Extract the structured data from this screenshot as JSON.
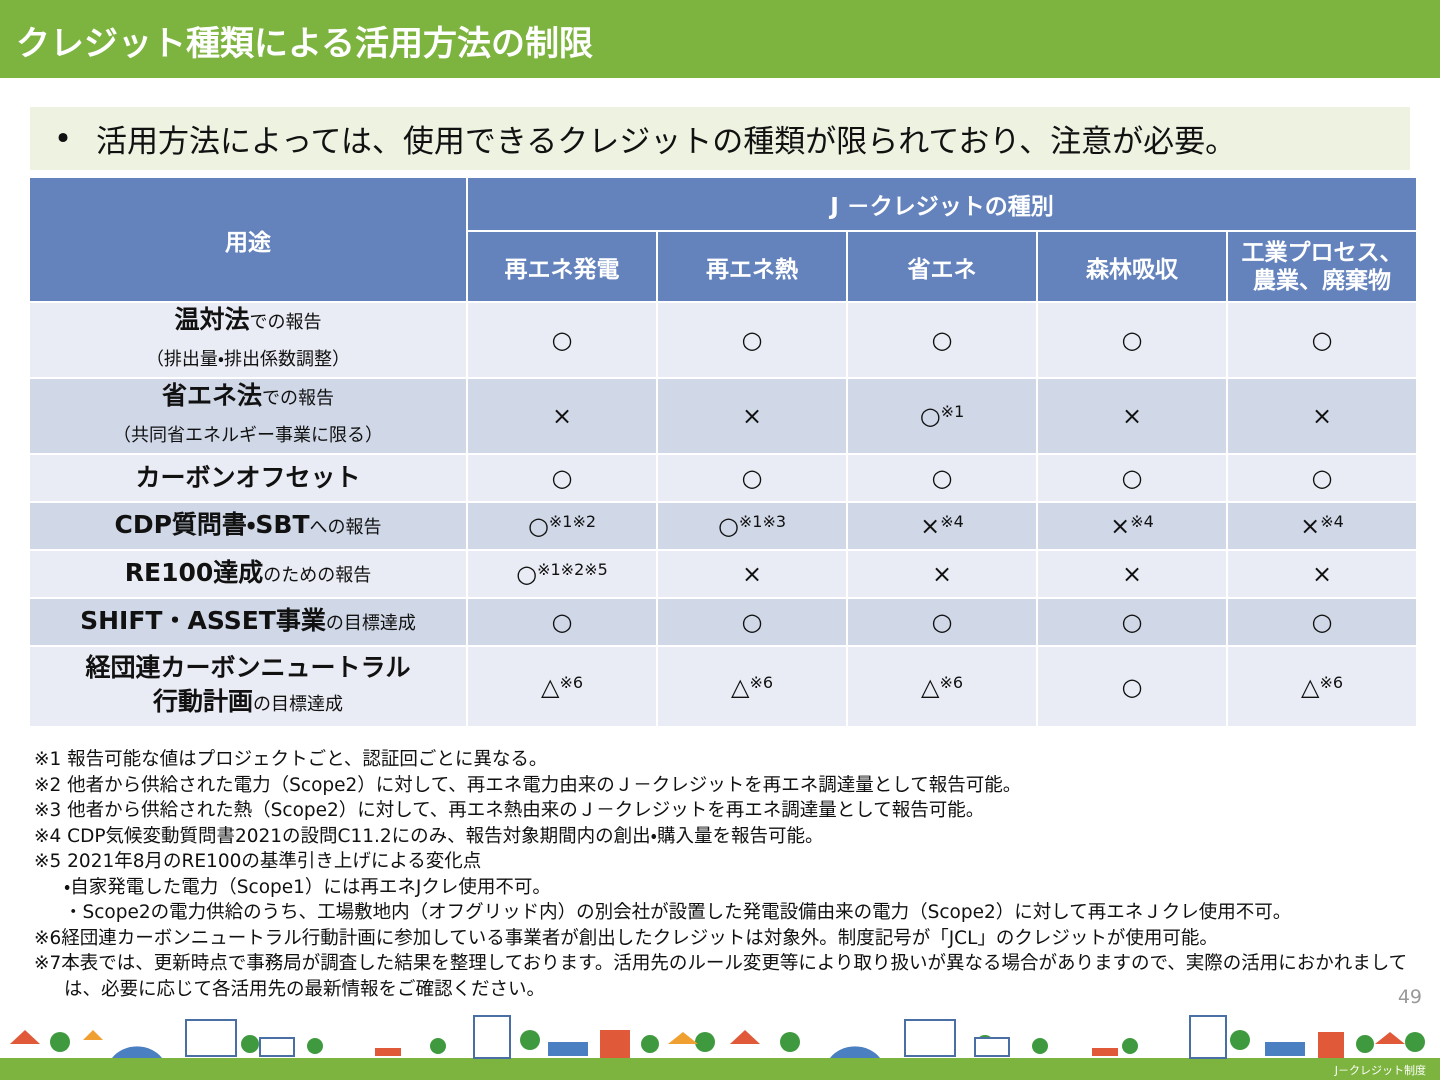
{
  "header": {
    "title": "クレジット種類による活用方法の制限"
  },
  "bullet": {
    "marker": "•",
    "text": "活用方法によっては、使用できるクレジットの種類が限られており、注意が必要。"
  },
  "table": {
    "usage_header": "用途",
    "group_header": "J －クレジットの種別",
    "columns": [
      [
        "再エネ発電"
      ],
      [
        "再エネ熱"
      ],
      [
        "省エネ"
      ],
      [
        "森林吸収"
      ],
      [
        "工業プロセス、",
        "農業、廃棄物"
      ]
    ],
    "rows": [
      {
        "label": [
          {
            "bold": "温対法",
            "normal": "での報告"
          },
          {
            "normal": "（排出量・排出係数調整）"
          }
        ],
        "cells": [
          {
            "mark": "○"
          },
          {
            "mark": "○"
          },
          {
            "mark": "○"
          },
          {
            "mark": "○"
          },
          {
            "mark": "○"
          }
        ]
      },
      {
        "label": [
          {
            "bold": "省エネ法",
            "normal": "での報告"
          },
          {
            "normal": "（共同省エネルギー事業に限る）"
          }
        ],
        "cells": [
          {
            "mark": "×"
          },
          {
            "mark": "×"
          },
          {
            "mark": "○",
            "note": "※1"
          },
          {
            "mark": "×"
          },
          {
            "mark": "×"
          }
        ]
      },
      {
        "label": [
          {
            "bold": "カーボンオフセット"
          }
        ],
        "cells": [
          {
            "mark": "○"
          },
          {
            "mark": "○"
          },
          {
            "mark": "○"
          },
          {
            "mark": "○"
          },
          {
            "mark": "○"
          }
        ]
      },
      {
        "label": [
          {
            "bold": "CDP質問書・SBT",
            "normal": "への報告"
          }
        ],
        "cells": [
          {
            "mark": "○",
            "note": "※1※2"
          },
          {
            "mark": "○",
            "note": "※1※3"
          },
          {
            "mark": "×",
            "note": "※4"
          },
          {
            "mark": "×",
            "note": "※4"
          },
          {
            "mark": "×",
            "note": "※4"
          }
        ]
      },
      {
        "label": [
          {
            "bold": "RE100達成",
            "normal": "のための報告"
          }
        ],
        "cells": [
          {
            "mark": "○",
            "note": "※1※2※5"
          },
          {
            "mark": "×"
          },
          {
            "mark": "×"
          },
          {
            "mark": "×"
          },
          {
            "mark": "×"
          }
        ]
      },
      {
        "label": [
          {
            "bold": "SHIFT・ASSET事業",
            "normal": "の目標達成"
          }
        ],
        "cells": [
          {
            "mark": "○"
          },
          {
            "mark": "○"
          },
          {
            "mark": "○"
          },
          {
            "mark": "○"
          },
          {
            "mark": "○"
          }
        ]
      },
      {
        "label": [
          {
            "bold": "経団連カーボンニュートラル"
          },
          {
            "bold": "行動計画",
            "normal": "の目標達成"
          }
        ],
        "cells": [
          {
            "mark": "△",
            "note": "※6"
          },
          {
            "mark": "△",
            "note": "※6"
          },
          {
            "mark": "△",
            "note": "※6"
          },
          {
            "mark": "○"
          },
          {
            "mark": "△",
            "note": "※6"
          }
        ]
      }
    ]
  },
  "notes": [
    {
      "text": "※1 報告可能な値はプロジェクトごと、認証回ごとに異なる。"
    },
    {
      "text": "※2 他者から供給された電力（Scope2）に対して、再エネ電力由来のＪ－クレジットを再エネ調達量として報告可能。"
    },
    {
      "text": "※3 他者から供給された熱（Scope2）に対して、再エネ熱由来のＪ－クレジットを再エネ調達量として報告可能。"
    },
    {
      "text": "※4 CDP気候変動質問書2021の設問C11.2にのみ、報告対象期間内の創出・購入量を報告可能。"
    },
    {
      "text": "※5 2021年8月のRE100の基準引き上げによる変化点"
    },
    {
      "text": "・自家発電した電力（Scope1）には再エネJクレ使用不可。",
      "sub": true
    },
    {
      "text": "・Scope2の電力供給のうち、工場敷地内（オフグリッド内）の別会社が設置した発電設備由来の電力（Scope2）に対して再エネＪクレ使用不可。",
      "sub": true
    },
    {
      "text": "※6経団連カーボンニュートラル行動計画に参加している事業者が創出したクレジットは対象外。制度記号が「JCL」のクレジットが使用可能。"
    },
    {
      "text": "※7本表では、更新時点で事務局が調査した結果を整理しております。活用先のルール変更等により取り扱いが異なる場合がありますので、実際の活用におかれましては、必要に応じて各活用先の最新情報をご確認ください。"
    }
  ],
  "footer": {
    "page": "49",
    "label": "J－クレジット制度"
  }
}
